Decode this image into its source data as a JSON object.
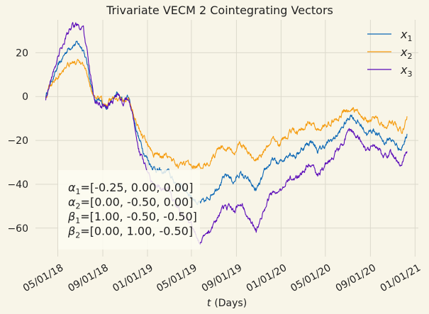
{
  "chart_data": {
    "type": "line",
    "title": "Trivariate VECM 2 Cointegrating Vectors",
    "xlabel": "t (Days)",
    "xlabel_var": "t",
    "xlabel_unit": "(Days)",
    "ylabel": "",
    "x_range": [
      "2018-03-29",
      "2020-12-10"
    ],
    "xlim": [
      "2018-03-01",
      "2021-01-10"
    ],
    "ylim": [
      -73,
      35
    ],
    "grid": true,
    "legend_position": "top-right",
    "x_ticks": [
      "2018-05-01",
      "2018-09-01",
      "2019-01-01",
      "2019-05-01",
      "2019-09-01",
      "2020-01-01",
      "2020-05-01",
      "2020-09-01",
      "2021-01-01"
    ],
    "x_tick_labels": [
      "05/01/18",
      "09/01/18",
      "01/01/19",
      "05/01/19",
      "09/01/19",
      "01/01/20",
      "05/01/20",
      "09/01/20",
      "01/01/21"
    ],
    "y_ticks": [
      20,
      0,
      -20,
      -40,
      -60
    ],
    "y_tick_labels": [
      "20",
      "0",
      "−20",
      "−40",
      "−60"
    ],
    "series": [
      {
        "name": "x1",
        "label_base": "x",
        "label_sub": "1",
        "color": "#0a67b5",
        "points": [
          [
            "2018-03-29",
            0
          ],
          [
            "2018-04-10",
            6
          ],
          [
            "2018-04-25",
            11
          ],
          [
            "2018-05-10",
            16
          ],
          [
            "2018-05-25",
            21
          ],
          [
            "2018-06-10",
            24
          ],
          [
            "2018-06-25",
            24
          ],
          [
            "2018-07-10",
            22
          ],
          [
            "2018-07-20",
            15
          ],
          [
            "2018-08-01",
            5
          ],
          [
            "2018-08-10",
            -2
          ],
          [
            "2018-08-25",
            -3
          ],
          [
            "2018-09-10",
            -4
          ],
          [
            "2018-09-25",
            -2
          ],
          [
            "2018-10-10",
            1
          ],
          [
            "2018-10-25",
            -2
          ],
          [
            "2018-11-10",
            0
          ],
          [
            "2018-11-25",
            -10
          ],
          [
            "2018-12-10",
            -20
          ],
          [
            "2018-12-25",
            -26
          ],
          [
            "2019-01-10",
            -31
          ],
          [
            "2019-01-25",
            -33
          ],
          [
            "2019-02-10",
            -35
          ],
          [
            "2019-02-25",
            -34
          ],
          [
            "2019-03-10",
            -38
          ],
          [
            "2019-03-25",
            -40
          ],
          [
            "2019-04-10",
            -42
          ],
          [
            "2019-04-25",
            -44
          ],
          [
            "2019-05-10",
            -47
          ],
          [
            "2019-05-25",
            -49
          ],
          [
            "2019-06-10",
            -48
          ],
          [
            "2019-06-25",
            -44
          ],
          [
            "2019-07-10",
            -41
          ],
          [
            "2019-07-25",
            -38
          ],
          [
            "2019-08-10",
            -36
          ],
          [
            "2019-08-25",
            -39
          ],
          [
            "2019-09-10",
            -35
          ],
          [
            "2019-09-25",
            -37
          ],
          [
            "2019-10-10",
            -40
          ],
          [
            "2019-10-25",
            -43
          ],
          [
            "2019-11-10",
            -38
          ],
          [
            "2019-11-25",
            -32
          ],
          [
            "2019-12-10",
            -29
          ],
          [
            "2019-12-25",
            -31
          ],
          [
            "2020-01-10",
            -28
          ],
          [
            "2020-01-25",
            -25
          ],
          [
            "2020-02-10",
            -27
          ],
          [
            "2020-02-25",
            -24
          ],
          [
            "2020-03-10",
            -22
          ],
          [
            "2020-03-25",
            -20
          ],
          [
            "2020-04-10",
            -25
          ],
          [
            "2020-04-25",
            -23
          ],
          [
            "2020-05-10",
            -21
          ],
          [
            "2020-05-25",
            -19
          ],
          [
            "2020-06-10",
            -16
          ],
          [
            "2020-06-25",
            -12
          ],
          [
            "2020-07-10",
            -8
          ],
          [
            "2020-07-25",
            -11
          ],
          [
            "2020-08-10",
            -14
          ],
          [
            "2020-08-25",
            -17
          ],
          [
            "2020-09-10",
            -15
          ],
          [
            "2020-09-25",
            -18
          ],
          [
            "2020-10-10",
            -21
          ],
          [
            "2020-10-25",
            -19
          ],
          [
            "2020-11-10",
            -22
          ],
          [
            "2020-11-25",
            -24
          ],
          [
            "2020-12-10",
            -17
          ]
        ]
      },
      {
        "name": "x2",
        "label_base": "x",
        "label_sub": "2",
        "color": "#f59b0d",
        "points": [
          [
            "2018-03-29",
            0
          ],
          [
            "2018-04-10",
            5
          ],
          [
            "2018-04-25",
            8
          ],
          [
            "2018-05-10",
            12
          ],
          [
            "2018-05-25",
            15
          ],
          [
            "2018-06-10",
            16
          ],
          [
            "2018-06-25",
            15
          ],
          [
            "2018-07-10",
            13
          ],
          [
            "2018-07-20",
            10
          ],
          [
            "2018-08-01",
            4
          ],
          [
            "2018-08-10",
            -1
          ],
          [
            "2018-08-25",
            -2
          ],
          [
            "2018-09-10",
            -3
          ],
          [
            "2018-09-25",
            -1
          ],
          [
            "2018-10-10",
            0
          ],
          [
            "2018-10-25",
            -2
          ],
          [
            "2018-11-10",
            -1
          ],
          [
            "2018-11-25",
            -8
          ],
          [
            "2018-12-10",
            -15
          ],
          [
            "2018-12-25",
            -20
          ],
          [
            "2019-01-10",
            -24
          ],
          [
            "2019-01-25",
            -26
          ],
          [
            "2019-02-10",
            -27
          ],
          [
            "2019-02-25",
            -28
          ],
          [
            "2019-03-10",
            -30
          ],
          [
            "2019-03-25",
            -31
          ],
          [
            "2019-04-10",
            -31
          ],
          [
            "2019-04-25",
            -30
          ],
          [
            "2019-05-10",
            -31
          ],
          [
            "2019-05-25",
            -32
          ],
          [
            "2019-06-10",
            -30
          ],
          [
            "2019-06-25",
            -28
          ],
          [
            "2019-07-10",
            -26
          ],
          [
            "2019-07-25",
            -24
          ],
          [
            "2019-08-10",
            -23
          ],
          [
            "2019-08-25",
            -26
          ],
          [
            "2019-09-10",
            -22
          ],
          [
            "2019-09-25",
            -24
          ],
          [
            "2019-10-10",
            -26
          ],
          [
            "2019-10-25",
            -29
          ],
          [
            "2019-11-10",
            -26
          ],
          [
            "2019-11-25",
            -22
          ],
          [
            "2019-12-10",
            -20
          ],
          [
            "2019-12-25",
            -22
          ],
          [
            "2020-01-10",
            -19
          ],
          [
            "2020-01-25",
            -16
          ],
          [
            "2020-02-10",
            -17
          ],
          [
            "2020-02-25",
            -15
          ],
          [
            "2020-03-10",
            -13
          ],
          [
            "2020-03-25",
            -12
          ],
          [
            "2020-04-10",
            -15
          ],
          [
            "2020-04-25",
            -14
          ],
          [
            "2020-05-10",
            -13
          ],
          [
            "2020-05-25",
            -11
          ],
          [
            "2020-06-10",
            -9
          ],
          [
            "2020-06-25",
            -7
          ],
          [
            "2020-07-10",
            -5
          ],
          [
            "2020-07-25",
            -7
          ],
          [
            "2020-08-10",
            -9
          ],
          [
            "2020-08-25",
            -11
          ],
          [
            "2020-09-10",
            -10
          ],
          [
            "2020-09-25",
            -12
          ],
          [
            "2020-10-10",
            -14
          ],
          [
            "2020-10-25",
            -12
          ],
          [
            "2020-11-10",
            -14
          ],
          [
            "2020-11-25",
            -16
          ],
          [
            "2020-12-10",
            -9
          ]
        ]
      },
      {
        "name": "x3",
        "label_base": "x",
        "label_sub": "3",
        "color": "#5a0ab8",
        "points": [
          [
            "2018-03-29",
            -1
          ],
          [
            "2018-04-10",
            7
          ],
          [
            "2018-04-25",
            15
          ],
          [
            "2018-05-10",
            22
          ],
          [
            "2018-05-25",
            28
          ],
          [
            "2018-06-10",
            32
          ],
          [
            "2018-06-25",
            33
          ],
          [
            "2018-07-10",
            30
          ],
          [
            "2018-07-20",
            20
          ],
          [
            "2018-08-01",
            6
          ],
          [
            "2018-08-10",
            -3
          ],
          [
            "2018-08-25",
            -4
          ],
          [
            "2018-09-10",
            -5
          ],
          [
            "2018-09-25",
            -3
          ],
          [
            "2018-10-10",
            1
          ],
          [
            "2018-10-25",
            -3
          ],
          [
            "2018-11-10",
            0
          ],
          [
            "2018-11-25",
            -12
          ],
          [
            "2018-12-10",
            -25
          ],
          [
            "2018-12-25",
            -32
          ],
          [
            "2019-01-10",
            -38
          ],
          [
            "2019-01-25",
            -40
          ],
          [
            "2019-02-10",
            -43
          ],
          [
            "2019-02-25",
            -42
          ],
          [
            "2019-03-10",
            -47
          ],
          [
            "2019-03-25",
            -51
          ],
          [
            "2019-04-10",
            -55
          ],
          [
            "2019-04-25",
            -58
          ],
          [
            "2019-05-10",
            -62
          ],
          [
            "2019-05-25",
            -66
          ],
          [
            "2019-06-10",
            -64
          ],
          [
            "2019-06-25",
            -60
          ],
          [
            "2019-07-10",
            -55
          ],
          [
            "2019-07-25",
            -52
          ],
          [
            "2019-08-10",
            -50
          ],
          [
            "2019-08-25",
            -53
          ],
          [
            "2019-09-10",
            -48
          ],
          [
            "2019-09-25",
            -51
          ],
          [
            "2019-10-10",
            -55
          ],
          [
            "2019-10-25",
            -61
          ],
          [
            "2019-11-10",
            -55
          ],
          [
            "2019-11-25",
            -47
          ],
          [
            "2019-12-10",
            -42
          ],
          [
            "2019-12-25",
            -45
          ],
          [
            "2020-01-10",
            -40
          ],
          [
            "2020-01-25",
            -36
          ],
          [
            "2020-02-10",
            -38
          ],
          [
            "2020-02-25",
            -35
          ],
          [
            "2020-03-10",
            -32
          ],
          [
            "2020-03-25",
            -30
          ],
          [
            "2020-04-10",
            -35
          ],
          [
            "2020-04-25",
            -32
          ],
          [
            "2020-05-10",
            -29
          ],
          [
            "2020-05-25",
            -27
          ],
          [
            "2020-06-10",
            -23
          ],
          [
            "2020-06-25",
            -19
          ],
          [
            "2020-07-10",
            -15
          ],
          [
            "2020-07-25",
            -18
          ],
          [
            "2020-08-10",
            -21
          ],
          [
            "2020-08-25",
            -24
          ],
          [
            "2020-09-10",
            -22
          ],
          [
            "2020-09-25",
            -25
          ],
          [
            "2020-10-10",
            -28
          ],
          [
            "2020-10-25",
            -26
          ],
          [
            "2020-11-10",
            -29
          ],
          [
            "2020-11-25",
            -31
          ],
          [
            "2020-12-10",
            -25
          ]
        ]
      }
    ],
    "annotation": [
      {
        "sym": "α",
        "sub": "1",
        "text": "=[-0.25, 0.00, 0.00]"
      },
      {
        "sym": "α",
        "sub": "2",
        "text": "=[0.00, -0.50, 0.00]"
      },
      {
        "sym": "β",
        "sub": "1",
        "text": "=[1.00, -0.50, -0.50]"
      },
      {
        "sym": "β",
        "sub": "2",
        "text": "=[0.00, 1.00, -0.50]"
      }
    ]
  }
}
